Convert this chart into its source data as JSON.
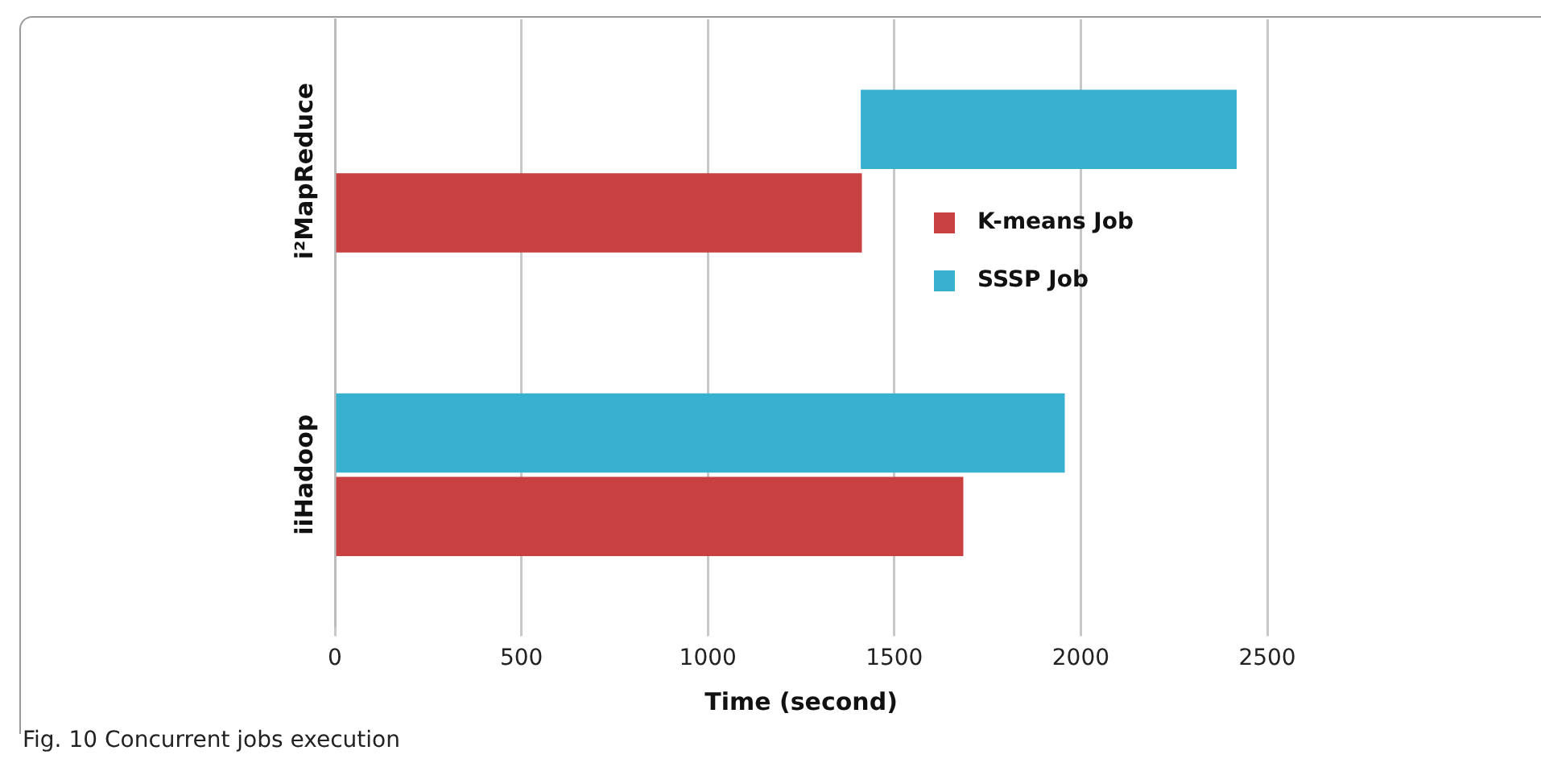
{
  "chart_data": {
    "type": "bar",
    "orientation": "horizontal",
    "xlabel": "Time (second)",
    "categories": [
      "i²MapReduce",
      "iiHadoop"
    ],
    "series": [
      {
        "name": "K-means Job",
        "color": "#c94040",
        "values": [
          1413,
          1685
        ],
        "base": [
          0,
          0
        ]
      },
      {
        "name": "SSSP Job",
        "color": "#38b0d0",
        "values": [
          1008,
          1957
        ],
        "base": [
          1410,
          0
        ]
      }
    ],
    "xlim": [
      0,
      2500
    ],
    "xticks": [
      0,
      500,
      1000,
      1500,
      2000,
      2500
    ],
    "grid": "x",
    "legend": "right",
    "annotations": [
      "Fig. 10 Concurrent jobs execution"
    ]
  }
}
